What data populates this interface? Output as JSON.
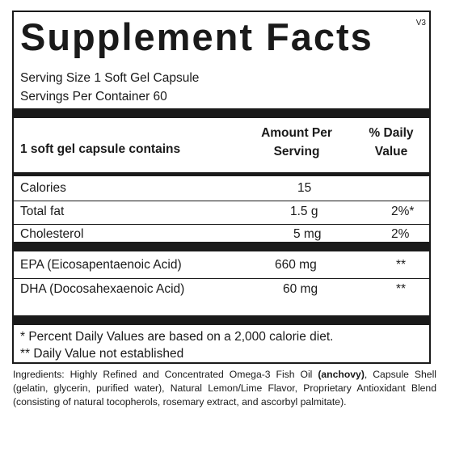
{
  "label": {
    "title": "Supplement Facts",
    "version": "V3",
    "serving_size": "Serving Size 1 Soft Gel Capsule",
    "servings_per_container": "Servings Per Container 60",
    "header": {
      "contains": "1 soft gel capsule contains",
      "amount_line1": "Amount Per",
      "amount_line2": "Serving",
      "dv_line1": "% Daily",
      "dv_line2": "Value"
    },
    "rows": [
      {
        "name": "Calories",
        "amount": "15",
        "dv": ""
      },
      {
        "name": "Total fat",
        "amount": "1.5 g",
        "dv": "2%*"
      },
      {
        "name": "Cholesterol",
        "amount": "5 mg",
        "dv": "2%"
      },
      {
        "name": "EPA (Eicosapentaenoic Acid)",
        "amount": "660 mg",
        "dv": "**"
      },
      {
        "name": "DHA (Docosahexaenoic Acid)",
        "amount": "60 mg",
        "dv": "**"
      }
    ],
    "footnotes": [
      "* Percent Daily Values are based on a 2,000 calorie diet.",
      "** Daily Value not established"
    ]
  },
  "ingredients": {
    "prefix": "Ingredients: Highly Refined and Concentrated Omega-3 Fish Oil ",
    "bold": "(anchovy)",
    "suffix": ", Capsule Shell (gelatin, glycerin, purified water), Natural Lemon/Lime Flavor, Proprietary Antioxidant Blend (consisting of natural tocopherols, rosemary extract, and ascorbyl palmitate)."
  }
}
